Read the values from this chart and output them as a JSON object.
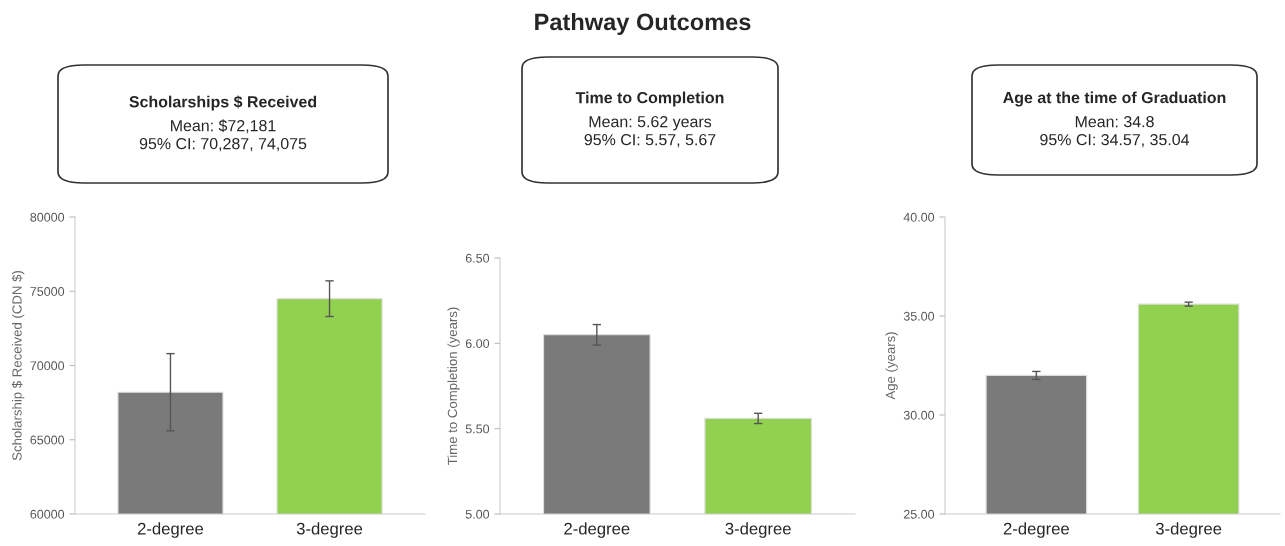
{
  "chart_data": [
    {
      "type": "other",
      "title": "Pathway Outcomes"
    },
    {
      "type": "bar",
      "title": "Scholarships $ Received",
      "annotations": [
        "Mean: $72,181",
        "95% CI: 70,287, 74,075"
      ],
      "ylabel": "Scholarship $ Received (CDN $)",
      "categories": [
        "2-degree",
        "3-degree"
      ],
      "values": [
        68200,
        74500
      ],
      "colors": [
        "#7a7a7a",
        "#92d050"
      ],
      "errors": [
        [
          65600,
          70800
        ],
        [
          73300,
          75700
        ]
      ],
      "ylim": [
        60000,
        80000
      ],
      "yticks": [
        60000,
        65000,
        70000,
        75000,
        80000
      ],
      "grid": false
    },
    {
      "type": "bar",
      "title": "Time to Completion",
      "annotations": [
        "Mean: 5.62 years",
        "95% CI: 5.57, 5.67"
      ],
      "ylabel": "Time to Completion (years)",
      "categories": [
        "2-degree",
        "3-degree"
      ],
      "values": [
        6.05,
        5.56
      ],
      "colors": [
        "#7a7a7a",
        "#92d050"
      ],
      "errors": [
        [
          5.99,
          6.11
        ],
        [
          5.53,
          5.59
        ]
      ],
      "ylim": [
        5.0,
        6.5
      ],
      "yticks": [
        {
          "value": 5.0,
          "label": "5.00"
        },
        {
          "value": 5.5,
          "label": "5.50"
        },
        {
          "value": 6.0,
          "label": "6.00"
        },
        {
          "value": 6.5,
          "label": "6.50"
        }
      ],
      "grid": false
    },
    {
      "type": "bar",
      "title": "Age at the time of Graduation",
      "annotations": [
        "Mean: 34.8",
        "95% CI: 34.57, 35.04"
      ],
      "ylabel": "Age (years)",
      "categories": [
        "2-degree",
        "3-degree"
      ],
      "values": [
        32.0,
        35.6
      ],
      "colors": [
        "#7a7a7a",
        "#92d050"
      ],
      "errors": [
        [
          31.8,
          32.2
        ],
        [
          35.5,
          35.7
        ]
      ],
      "ylim": [
        25.0,
        40.0
      ],
      "yticks": [
        {
          "value": 25.0,
          "label": "25.00"
        },
        {
          "value": 30.0,
          "label": "30.00"
        },
        {
          "value": 35.0,
          "label": "35.00"
        },
        {
          "value": 40.0,
          "label": "40.00"
        }
      ],
      "grid": false
    }
  ]
}
